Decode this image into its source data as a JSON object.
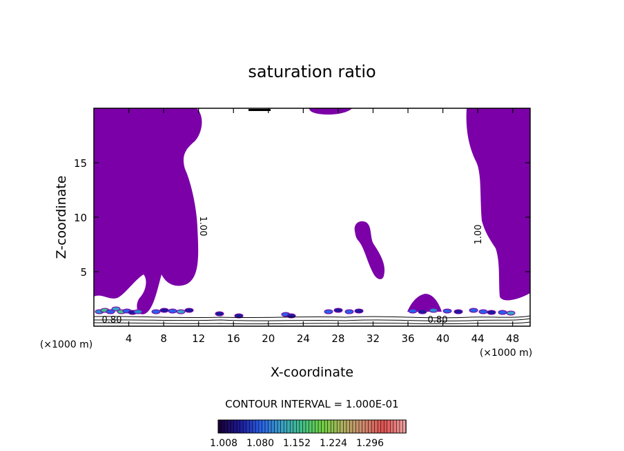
{
  "chart_data": {
    "type": "contour",
    "title": "saturation ratio",
    "xlabel": "X-coordinate",
    "ylabel": "Z-coordinate",
    "x_unit": "(×1000 m)",
    "xlim": [
      0,
      50
    ],
    "ylim": [
      0,
      20
    ],
    "x_ticks": [
      4,
      8,
      12,
      16,
      20,
      24,
      28,
      32,
      36,
      40,
      44,
      48
    ],
    "y_ticks": [
      5,
      10,
      15
    ],
    "contour_interval_label": "CONTOUR INTERVAL = 1.000E-01",
    "contour_labels": [
      "1.00",
      "1.00",
      "0.80",
      "0.80"
    ],
    "fill_color": "#7b00a8",
    "colorbar": {
      "ticks": [
        "1.008",
        "1.080",
        "1.152",
        "1.224",
        "1.296"
      ],
      "colors": [
        "#1a0038",
        "#1c1a9a",
        "#2a60e6",
        "#3aa0c8",
        "#40c08a",
        "#70d040",
        "#b0b060",
        "#d08a70",
        "#e05050",
        "#f0a0a0"
      ]
    }
  }
}
